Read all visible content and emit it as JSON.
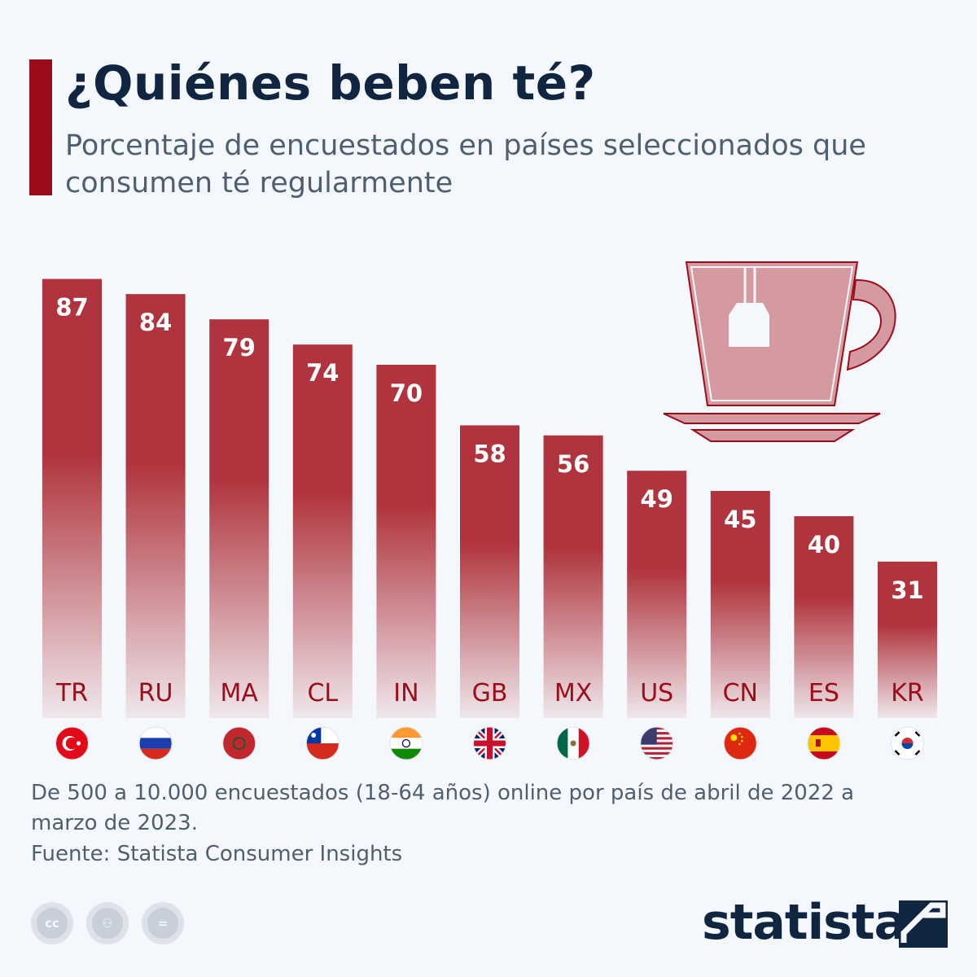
{
  "header": {
    "title": "¿Quiénes beben té?",
    "subtitle": "Porcentaje de encuestados en países seleccionados que consumen té regularmente"
  },
  "chart_data": {
    "type": "bar",
    "title": "¿Quiénes beben té?",
    "subtitle": "Porcentaje de encuestados en países seleccionados que consumen té regularmente",
    "categories": [
      "TR",
      "RU",
      "MA",
      "CL",
      "IN",
      "GB",
      "MX",
      "US",
      "CN",
      "ES",
      "KR"
    ],
    "values": [
      87,
      84,
      79,
      74,
      70,
      58,
      56,
      49,
      45,
      40,
      31
    ],
    "xlabel": "",
    "ylabel": "",
    "ylim": [
      0,
      100
    ],
    "grid": false,
    "bar_color": "#b0343d",
    "flag_icons": [
      "turkey-flag",
      "russia-flag",
      "morocco-flag",
      "chile-flag",
      "india-flag",
      "uk-flag",
      "mexico-flag",
      "usa-flag",
      "china-flag",
      "spain-flag",
      "south-korea-flag"
    ]
  },
  "footer": {
    "note": "De 500 a 10.000 encuestados (18-64 años) online por país de abril de 2022 a marzo de 2023.",
    "source": "Fuente: Statista Consumer Insights",
    "brand": "statista",
    "license_icons": [
      "cc-icon",
      "attribution-icon",
      "no-derivatives-icon"
    ]
  },
  "colors": {
    "accent": "#9c0d1a",
    "title": "#0f2540",
    "text": "#4f5f72",
    "background": "#f4f7fb"
  }
}
